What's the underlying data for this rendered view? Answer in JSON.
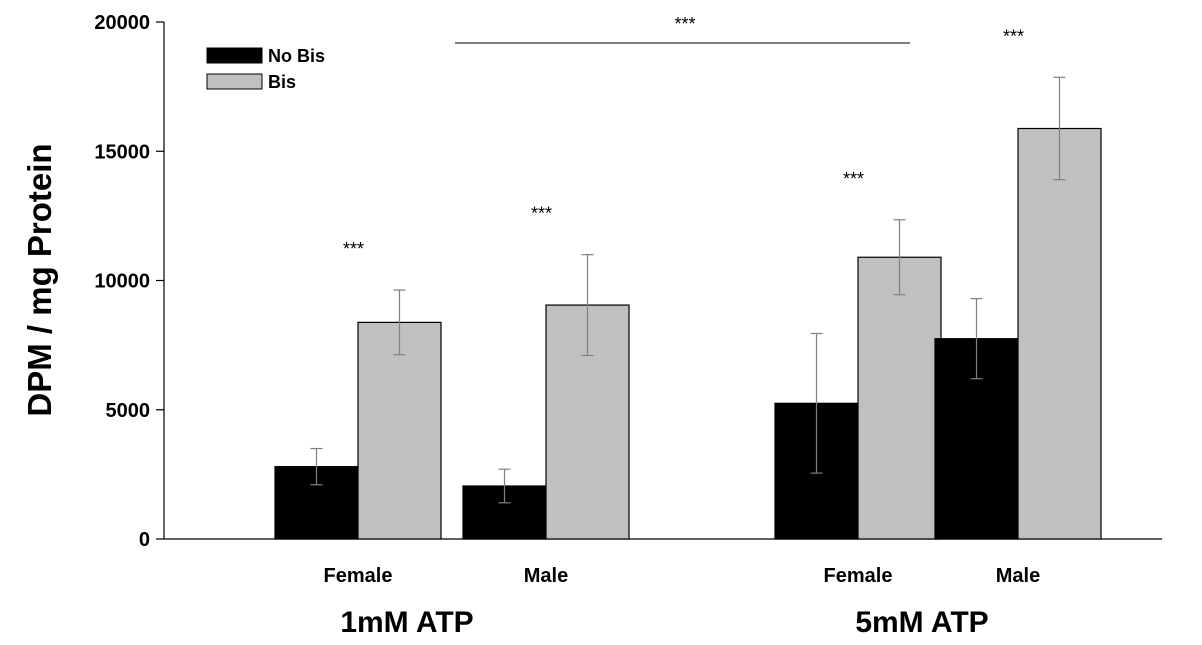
{
  "chart_data": {
    "type": "bar",
    "title": "",
    "xlabel": "",
    "ylabel": "DPM / mg Protein",
    "ylim": [
      0,
      20000
    ],
    "yticks": [
      0,
      5000,
      10000,
      15000,
      20000
    ],
    "ytick_labels": [
      "0",
      "5000",
      "10000",
      "15000",
      "20000"
    ],
    "groups": [
      "1mM ATP",
      "5mM ATP"
    ],
    "categories": [
      "Female",
      "Male",
      "Female",
      "Male"
    ],
    "category_group": [
      0,
      0,
      1,
      1
    ],
    "series": [
      {
        "name": "No Bis",
        "color": "#000000",
        "values": [
          2800,
          2050,
          5250,
          7750
        ],
        "errors": [
          700,
          650,
          2700,
          1550
        ]
      },
      {
        "name": "Bis",
        "color": "#c0c0c0",
        "values": [
          8380,
          9050,
          10900,
          15880
        ],
        "errors": [
          1250,
          1950,
          1450,
          1980
        ]
      }
    ],
    "bar_annotations": [
      "***",
      "***",
      "***",
      "***"
    ],
    "bracket_annotation": "***",
    "legend": {
      "position": "top-left"
    },
    "grid": false
  }
}
